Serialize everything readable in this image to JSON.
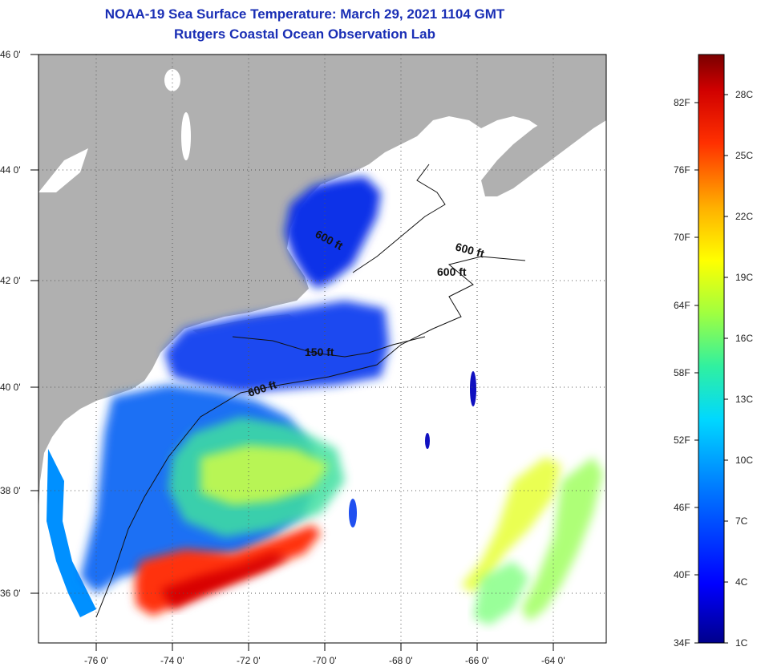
{
  "title": {
    "line1": "NOAA-19 Sea Surface Temperature:  March 29, 2021 1104 GMT",
    "line2": "Rutgers Coastal Ocean Observation Lab"
  },
  "map": {
    "lon_labels": [
      "-76 0'",
      "-74 0'",
      "-72 0'",
      "-70 0'",
      "-68 0'",
      "-66 0'",
      "-64 0'"
    ],
    "lat_labels": [
      "46 0'",
      "44 0'",
      "42 0'",
      "40 0'",
      "38 0'",
      "36 0'"
    ],
    "contour_labels": [
      "600 ft",
      "600 ft",
      "600 ft",
      "150 ft",
      "600 ft"
    ],
    "colors": {
      "land": "#b0b0b0",
      "ocean_nodata": "#ffffff",
      "grid": "#555555"
    }
  },
  "colorbar": {
    "fahrenheit_labels": [
      "82F",
      "76F",
      "70F",
      "64F",
      "58F",
      "52F",
      "46F",
      "40F",
      "34F"
    ],
    "celsius_labels": [
      "28C",
      "25C",
      "22C",
      "19C",
      "16C",
      "13C",
      "10C",
      "7C",
      "4C",
      "1C"
    ],
    "colors": [
      "#00008b",
      "#0000ff",
      "#0060ff",
      "#00c0ff",
      "#00e8d0",
      "#40ff80",
      "#c0ff30",
      "#ffff00",
      "#ffb000",
      "#ff5000",
      "#e00000",
      "#800000"
    ]
  }
}
